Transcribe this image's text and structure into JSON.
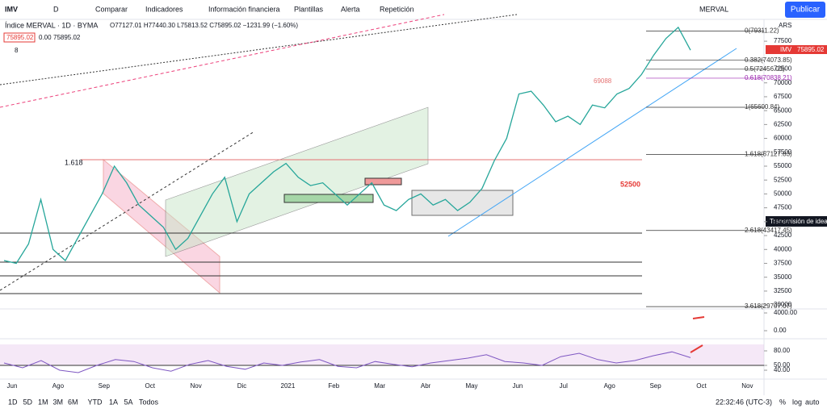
{
  "toolbar": {
    "symbol": "IMV",
    "interval": "D",
    "items": [
      "Comparar",
      "Indicadores",
      "Información financiera",
      "Plantillas",
      "Alerta",
      "Repetición"
    ],
    "watch": "MERVAL",
    "publish": "Publicar"
  },
  "legend": {
    "title": "Índice MERVAL · 1D · BYMA",
    "ohlc": "O77127.01 H77440.30 L75813.52 C75895.02 −1231.99 (−1.60%)",
    "boxes": [
      "75895.02",
      "0.00",
      "75895.02"
    ],
    "count": "8"
  },
  "chart_data": {
    "type": "line",
    "currency": "ARS",
    "color": "#26a69a",
    "x_labels": [
      "Jun",
      "Ago",
      "Sep",
      "Oct",
      "Nov",
      "Dic",
      "2021",
      "Feb",
      "Mar",
      "Abr",
      "May",
      "Jun",
      "Jul",
      "Ago",
      "Sep",
      "Oct",
      "Nov"
    ],
    "values": [
      38000,
      37500,
      41000,
      49000,
      40000,
      38000,
      42000,
      46000,
      50000,
      55000,
      52000,
      48000,
      46000,
      44000,
      40000,
      42000,
      46000,
      50000,
      53000,
      45000,
      50000,
      52000,
      54000,
      55500,
      53000,
      51500,
      52000,
      50000,
      48000,
      50000,
      52000,
      48000,
      47000,
      49000,
      50000,
      48000,
      49000,
      47000,
      48500,
      51000,
      56000,
      60000,
      68000,
      68500,
      66000,
      63000,
      64000,
      62500,
      66000,
      65500,
      68000,
      69000,
      71500,
      75000,
      78000,
      80000,
      75895
    ],
    "ylim": [
      29000,
      81000
    ],
    "yticks": [
      30000,
      32500,
      35000,
      37500,
      40000,
      42500,
      45000,
      47500,
      50000,
      52500,
      55000,
      57500,
      60000,
      62500,
      65000,
      67500,
      70000,
      72500,
      77500
    ],
    "last_tag": {
      "symbol": "IMV",
      "value": "75895.02"
    },
    "fib": [
      {
        "value": 79311.22,
        "label": "0(79311.22)"
      },
      {
        "value": 74073.85,
        "label": "0.382(74073.85)"
      },
      {
        "value": 72456.03,
        "label": "0.5(72456.03)"
      },
      {
        "value": 70838.21,
        "label": "0.618(70838.21)"
      },
      {
        "value": 65600.84,
        "label": "1(65600.84)"
      },
      {
        "value": 57127.83,
        "label": "1.618(57127.83)"
      },
      {
        "value": 43417.45,
        "label": "2.618(43417.45)"
      },
      {
        "value": 29707.07,
        "label": "3.618(29707.07)"
      }
    ],
    "annotations": [
      "1.618",
      "52500",
      "69088"
    ],
    "tooltip": "Transmisión de ideas",
    "macd_ticks": [
      {
        "value": 4000,
        "label": "4000.00"
      },
      {
        "value": 0,
        "label": "0.00"
      }
    ],
    "rsi_values": [
      55,
      45,
      60,
      40,
      35,
      50,
      62,
      58,
      45,
      38,
      52,
      60,
      48,
      42,
      55,
      50,
      57,
      62,
      48,
      45,
      58,
      52,
      47,
      55,
      60,
      65,
      72,
      58,
      55,
      50,
      68,
      75,
      62,
      55,
      60,
      70,
      78,
      66
    ],
    "rsi_ticks": [
      {
        "value": 80,
        "label": "80.00"
      },
      {
        "value": 50,
        "label": "50.00"
      },
      {
        "value": 40,
        "label": "40.00"
      }
    ]
  },
  "footer": {
    "ranges": [
      "1D",
      "5D",
      "1M",
      "3M",
      "6M",
      "YTD",
      "1A",
      "5A",
      "Todos"
    ],
    "clock": "22:32:46 (UTC-3)",
    "opts": [
      "%",
      "log",
      "auto"
    ]
  }
}
